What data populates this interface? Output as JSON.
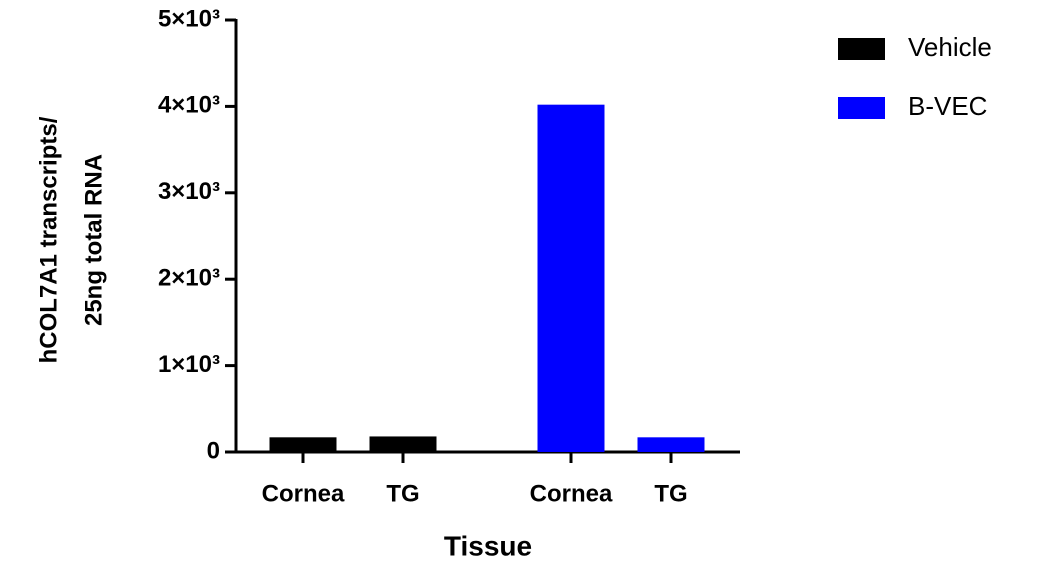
{
  "chart_data": {
    "type": "bar",
    "ylabel": [
      "hCOL7A1 transcripts/",
      "25ng total RNA"
    ],
    "xlabel": "Tissue",
    "categories": [
      "Cornea",
      "TG",
      "Cornea",
      "TG"
    ],
    "series": [
      {
        "name": "Vehicle",
        "color": "#000000",
        "values": [
          170,
          180,
          null,
          null
        ]
      },
      {
        "name": "B-VEC",
        "color": "#0000ff",
        "values": [
          null,
          null,
          4020,
          170
        ]
      }
    ],
    "ylim": [
      0,
      5000
    ],
    "yticks": [
      0,
      {
        "value": 1000,
        "label": "1×10³"
      },
      {
        "value": 2000,
        "label": "2×10³"
      },
      {
        "value": 3000,
        "label": "3×10³"
      },
      {
        "value": 4000,
        "label": "4×10³"
      },
      {
        "value": 5000,
        "label": "5×10³"
      }
    ],
    "legend": "top-right"
  }
}
